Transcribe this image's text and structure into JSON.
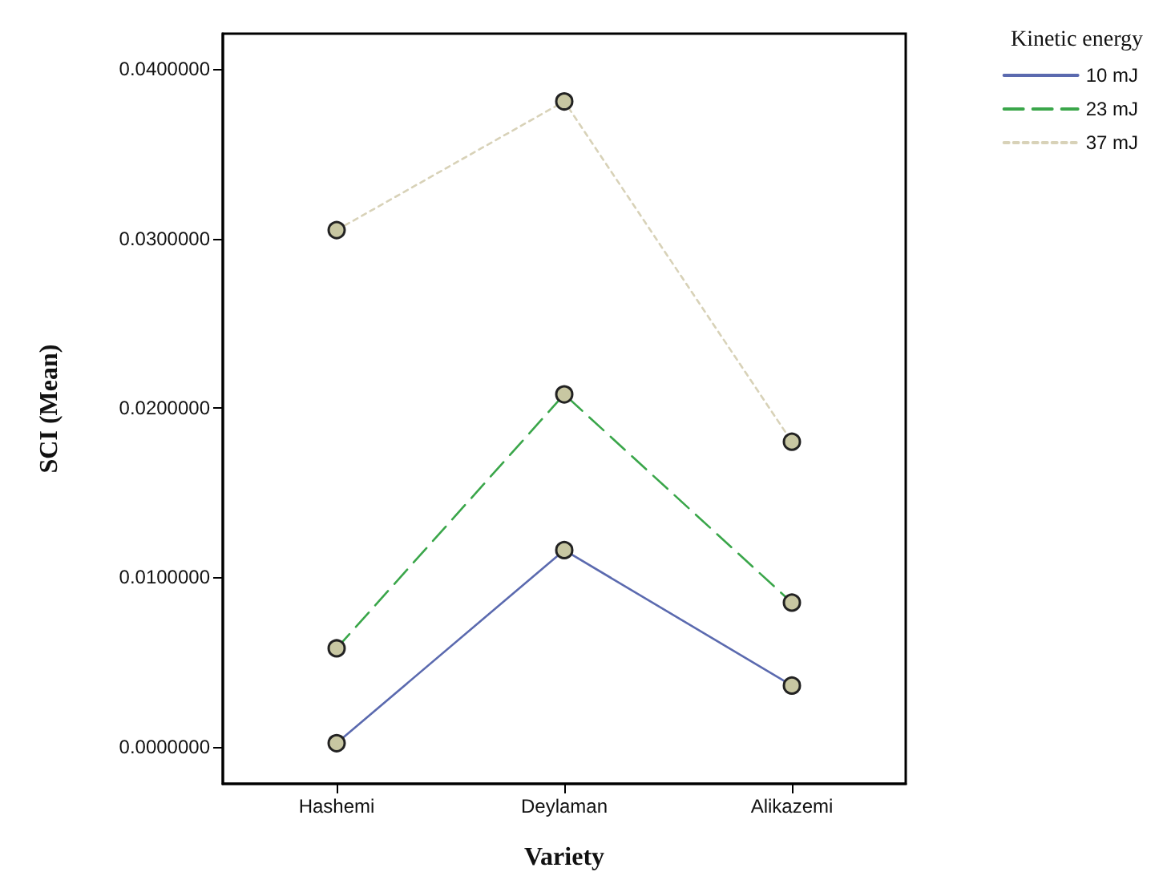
{
  "chart_data": {
    "type": "line",
    "xlabel": "Variety",
    "ylabel": "SCI (Mean)",
    "legend_title": "Kinetic energy",
    "legend": "top right",
    "marker": "circle",
    "grid": false,
    "categories": [
      "Hashemi",
      "Deylaman",
      "Alikazemi"
    ],
    "ylim": [
      -0.0022,
      0.0421
    ],
    "yticks": [
      {
        "value": 0,
        "label": "0.0000000"
      },
      {
        "value": 0.01,
        "label": "0.0100000"
      },
      {
        "value": 0.02,
        "label": "0.0200000"
      },
      {
        "value": 0.03,
        "label": "0.0300000"
      },
      {
        "value": 0.04,
        "label": "0.0400000"
      }
    ],
    "series": [
      {
        "name": "10 mJ",
        "color": "#5b6aaf",
        "line_style": "solid",
        "values": [
          0.0002,
          0.0116,
          0.0036
        ]
      },
      {
        "name": "23 mJ",
        "color": "#3aa64a",
        "line_style": "dashed",
        "values": [
          0.0058,
          0.0208,
          0.0085
        ]
      },
      {
        "name": "37 mJ",
        "color": "#d8d2b8",
        "line_style": "dotted",
        "values": [
          0.0305,
          0.0381,
          0.018
        ]
      }
    ]
  }
}
